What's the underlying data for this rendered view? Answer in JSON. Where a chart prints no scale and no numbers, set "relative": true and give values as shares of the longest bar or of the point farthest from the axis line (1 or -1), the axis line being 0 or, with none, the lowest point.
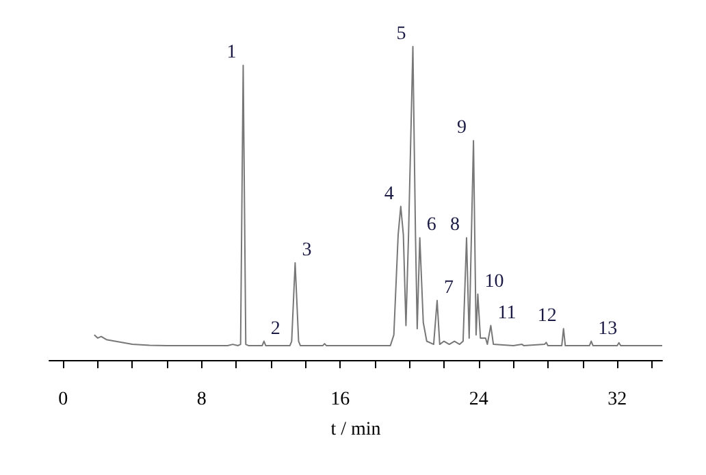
{
  "chart_data": {
    "type": "line",
    "relative": true,
    "xlabel": "t / min",
    "xlim": [
      -0.8,
      34.6
    ],
    "xticks": [
      0,
      {
        "value": 2,
        "label": null
      },
      {
        "value": 4,
        "label": null
      },
      {
        "value": 6,
        "label": null
      },
      8,
      {
        "value": 10,
        "label": null
      },
      {
        "value": 12,
        "label": null
      },
      {
        "value": 14,
        "label": null
      },
      16,
      {
        "value": 18,
        "label": null
      },
      {
        "value": 20,
        "label": null
      },
      {
        "value": 22,
        "label": null
      },
      24,
      {
        "value": 26,
        "label": null
      },
      {
        "value": 28,
        "label": null
      },
      {
        "value": 30,
        "label": null
      },
      32,
      {
        "value": 34,
        "label": null
      }
    ],
    "series": [
      {
        "color": "#777777",
        "x": [
          1.8,
          2.0,
          2.2,
          2.5,
          3.0,
          3.5,
          4.0,
          5,
          6,
          9.5,
          9.8,
          10.1,
          10.25,
          10.4,
          10.55,
          10.7,
          11.5,
          11.6,
          11.7,
          13.1,
          13.2,
          13.4,
          13.6,
          13.7,
          15.0,
          15.1,
          15.2,
          18.9,
          19.1,
          19.35,
          19.5,
          19.65,
          19.8,
          19.95,
          20.2,
          20.35,
          20.45,
          20.6,
          20.8,
          21.0,
          21.4,
          21.6,
          21.75,
          22.0,
          22.3,
          22.6,
          22.9,
          23.1,
          23.3,
          23.45,
          23.7,
          23.85,
          23.95,
          24.1,
          24.4,
          24.5,
          24.7,
          24.85,
          26,
          26.5,
          26.6,
          27.8,
          27.9,
          28.0,
          28.8,
          28.9,
          29.0,
          30.4,
          30.5,
          30.6,
          32.0,
          32.1,
          32.2,
          33,
          34.6
        ],
        "values": [
          0.08,
          0.07,
          0.075,
          0.065,
          0.06,
          0.055,
          0.05,
          0.047,
          0.046,
          0.046,
          0.05,
          0.046,
          0.05,
          0.94,
          0.05,
          0.046,
          0.046,
          0.06,
          0.046,
          0.046,
          0.06,
          0.31,
          0.06,
          0.046,
          0.046,
          0.052,
          0.046,
          0.046,
          0.08,
          0.4,
          0.49,
          0.4,
          0.11,
          0.4,
          1,
          0.4,
          0.1,
          0.39,
          0.12,
          0.06,
          0.05,
          0.19,
          0.05,
          0.06,
          0.05,
          0.06,
          0.05,
          0.06,
          0.39,
          0.07,
          0.7,
          0.08,
          0.21,
          0.07,
          0.07,
          0.05,
          0.11,
          0.05,
          0.046,
          0.05,
          0.046,
          0.05,
          0.056,
          0.046,
          0.046,
          0.1,
          0.046,
          0.046,
          0.06,
          0.046,
          0.046,
          0.055,
          0.046,
          0.046,
          0.046
        ]
      }
    ],
    "annotations": [
      {
        "text": "1",
        "x": 10.4,
        "y": 0.94
      },
      {
        "text": "2",
        "x": 11.6,
        "y": 0.06
      },
      {
        "text": "3",
        "x": 13.4,
        "y": 0.31
      },
      {
        "text": "4",
        "x": 19.5,
        "y": 0.49
      },
      {
        "text": "5",
        "x": 20.2,
        "y": 1
      },
      {
        "text": "6",
        "x": 20.6,
        "y": 0.39
      },
      {
        "text": "7",
        "x": 21.6,
        "y": 0.19
      },
      {
        "text": "8",
        "x": 23.3,
        "y": 0.39
      },
      {
        "text": "9",
        "x": 23.7,
        "y": 0.7
      },
      {
        "text": "10",
        "x": 23.95,
        "y": 0.21
      },
      {
        "text": "11",
        "x": 24.7,
        "y": 0.11
      },
      {
        "text": "12",
        "x": 28.9,
        "y": 0.1
      },
      {
        "text": "13",
        "x": 30.5,
        "y": 0.06
      }
    ],
    "grid": false,
    "marker": "none",
    "line_style": "solid"
  }
}
